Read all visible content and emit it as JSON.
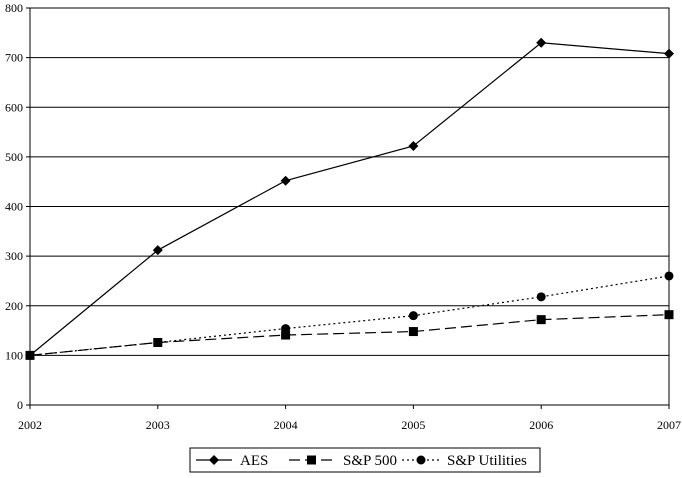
{
  "chart_data": {
    "type": "line",
    "title": "",
    "xlabel": "",
    "ylabel": "",
    "x": [
      "2002",
      "2003",
      "2004",
      "2005",
      "2006",
      "2007"
    ],
    "ylim": [
      0,
      800
    ],
    "yticks": [
      0,
      100,
      200,
      300,
      400,
      500,
      600,
      700,
      800
    ],
    "grid": true,
    "legend_position": "bottom",
    "series": [
      {
        "name": "AES",
        "values": [
          100,
          312,
          452,
          522,
          730,
          708
        ],
        "marker": "diamond",
        "line_style": "solid",
        "color": "#000000"
      },
      {
        "name": "S&P 500",
        "values": [
          100,
          126,
          141,
          148,
          172,
          182
        ],
        "marker": "square",
        "line_style": "dashed",
        "color": "#000000"
      },
      {
        "name": "S&P Utilities",
        "values": [
          100,
          126,
          154,
          180,
          218,
          260
        ],
        "marker": "circle",
        "line_style": "dotted",
        "color": "#000000"
      }
    ]
  }
}
